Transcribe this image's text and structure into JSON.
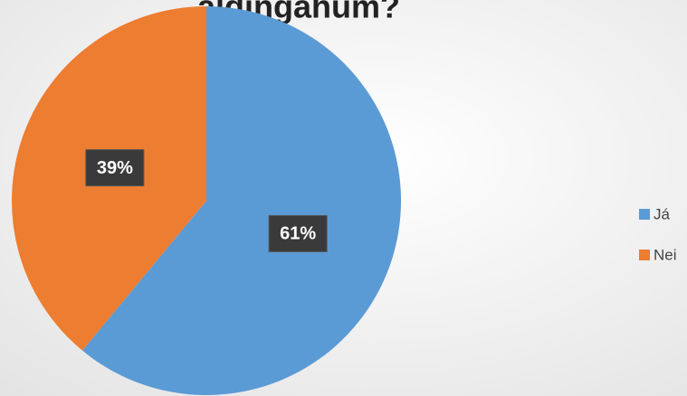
{
  "chart_data": {
    "type": "pie",
    "title": "aldingahum?",
    "categories": [
      "Já",
      "Nei"
    ],
    "values": [
      61,
      39
    ],
    "value_labels": [
      "61%",
      "39%"
    ],
    "colors": [
      "#5b9bd5",
      "#ed7d31"
    ],
    "legend": "right"
  }
}
